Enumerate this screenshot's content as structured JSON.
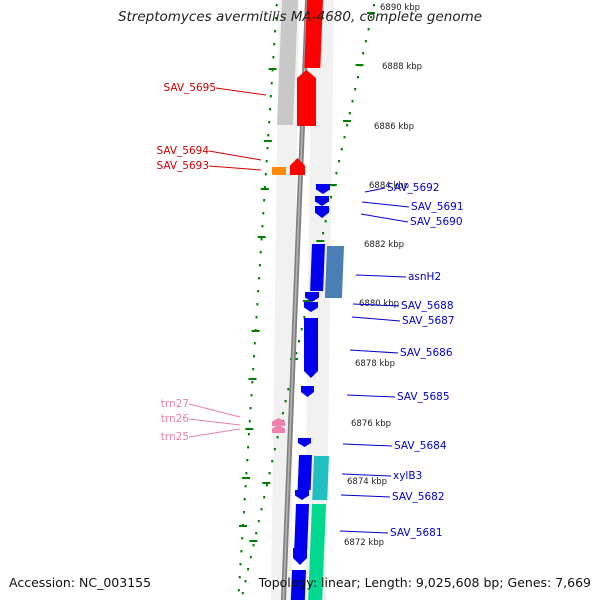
{
  "title": "Streptomyces avermitilis MA-4680, complete genome",
  "footer": {
    "accession": "Accession: NC_003155",
    "summary": "Topology: linear; Length: 9,025,608 bp; Genes: 7,669"
  },
  "colors": {
    "plus_cds": "#ff0000",
    "plus_misc": "#ff8c00",
    "minus_cds": "#0000ee",
    "minus_asnH2": "#4a7fb5",
    "minus_xylB3": "#20c0c0",
    "minus_teal": "#00d890",
    "trna": "#f080b0",
    "plus_label": "#d00000",
    "minus_label": "#0000cc",
    "trna_label": "#e880a8",
    "tick": "#008000"
  },
  "scale_labels": [
    "6890 kbp",
    "6888 kbp",
    "6886 kbp",
    "6884 kbp",
    "6882 kbp",
    "6880 kbp",
    "6878 kbp",
    "6876 kbp",
    "6874 kbp",
    "6872 kbp"
  ],
  "plus_labels": [
    "SAV_5695",
    "SAV_5694",
    "SAV_5693"
  ],
  "trna_labels": [
    "trn27",
    "trn26",
    "trn25"
  ],
  "minus_labels": [
    "SAV_5692",
    "SAV_5691",
    "SAV_5690",
    "asnH2",
    "SAV_5688",
    "SAV_5687",
    "SAV_5686",
    "SAV_5685",
    "SAV_5684",
    "xylB3",
    "SAV_5682",
    "SAV_5681"
  ]
}
